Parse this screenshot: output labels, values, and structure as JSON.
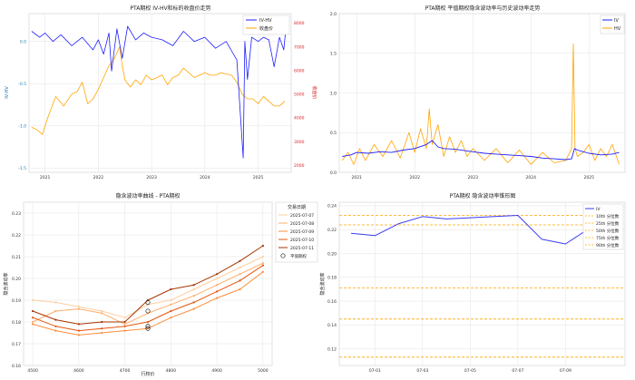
{
  "chart_data": [
    {
      "id": "c1",
      "type": "line",
      "title": "PTA期权 IV-HV和标的收盘价走势",
      "ylabel": "IV-HV",
      "y2label": "收盘价",
      "ylim": [
        -1.55,
        0.33
      ],
      "y2lim": [
        1700,
        8400
      ],
      "xlim": [
        2020.7,
        2025.62
      ],
      "yticks": [
        -1.5,
        -1.0,
        -0.5,
        0.0
      ],
      "yticklabels": [
        "-1.5",
        "-1.0",
        "-0.5",
        "0.0"
      ],
      "y2ticks": [
        2000,
        3000,
        4000,
        5000,
        6000,
        7000,
        8000
      ],
      "y2ticklabels": [
        "2000",
        "3000",
        "4000",
        "5000",
        "6000",
        "7000",
        "8000"
      ],
      "xticks": [
        2021,
        2022,
        2023,
        2024,
        2025
      ],
      "xticklabels": [
        "2021",
        "2022",
        "2023",
        "2024",
        "2025"
      ],
      "legend": [
        "IV-HV",
        "收盘价"
      ],
      "legend_position": "top-right",
      "colors": {
        "iv_hv": "#1f1fff",
        "close": "#ffa500",
        "axis_left": "#1f77b4",
        "axis_right": "#d62728"
      },
      "series": [
        {
          "name": "IV-HV",
          "axis": "left",
          "x": [
            2020.75,
            2020.9,
            2021.0,
            2021.15,
            2021.3,
            2021.5,
            2021.7,
            2021.9,
            2022.0,
            2022.1,
            2022.2,
            2022.25,
            2022.35,
            2022.45,
            2022.55,
            2022.7,
            2022.85,
            2023.0,
            2023.2,
            2023.4,
            2023.6,
            2023.8,
            2024.0,
            2024.2,
            2024.4,
            2024.6,
            2024.72,
            2024.75,
            2024.8,
            2024.88,
            2025.0,
            2025.1,
            2025.2,
            2025.3,
            2025.4,
            2025.48,
            2025.52
          ],
          "y": [
            0.12,
            0.05,
            0.1,
            0.0,
            0.08,
            -0.05,
            0.05,
            -0.1,
            0.02,
            -0.15,
            0.1,
            -0.35,
            0.15,
            -0.2,
            0.18,
            0.02,
            0.1,
            0.05,
            0.02,
            -0.05,
            0.12,
            0.0,
            0.05,
            -0.08,
            0.0,
            -0.22,
            -1.38,
            0.0,
            -0.45,
            0.05,
            0.0,
            0.05,
            0.02,
            -0.3,
            0.05,
            -0.1,
            0.15
          ]
        },
        {
          "name": "收盘价",
          "axis": "right",
          "x": [
            2020.75,
            2020.85,
            2020.95,
            2021.05,
            2021.2,
            2021.35,
            2021.5,
            2021.6,
            2021.7,
            2021.8,
            2021.9,
            2022.0,
            2022.1,
            2022.2,
            2022.3,
            2022.4,
            2022.45,
            2022.5,
            2022.6,
            2022.7,
            2022.8,
            2022.9,
            2023.0,
            2023.1,
            2023.2,
            2023.3,
            2023.4,
            2023.5,
            2023.6,
            2023.7,
            2023.8,
            2023.9,
            2024.0,
            2024.1,
            2024.2,
            2024.3,
            2024.4,
            2024.5,
            2024.6,
            2024.7,
            2024.8,
            2024.9,
            2025.0,
            2025.1,
            2025.2,
            2025.3,
            2025.4,
            2025.5
          ],
          "y": [
            3600,
            3500,
            3300,
            4000,
            4900,
            4500,
            5000,
            5100,
            5500,
            4600,
            4800,
            5200,
            5700,
            6200,
            6500,
            7000,
            6200,
            5600,
            5300,
            5600,
            5400,
            5800,
            5600,
            5700,
            5800,
            5400,
            5700,
            5800,
            6100,
            5900,
            5700,
            5800,
            5900,
            5800,
            5800,
            5900,
            5850,
            5800,
            5500,
            5000,
            4800,
            4800,
            4600,
            4900,
            4700,
            4500,
            4500,
            4700
          ]
        }
      ]
    },
    {
      "id": "c2",
      "type": "line",
      "title": "PTA期权 平值期权隐含波动率与历史波动率走势",
      "ylim": [
        0.0,
        2.0
      ],
      "xlim": [
        2020.7,
        2025.62
      ],
      "yticks": [
        0.0,
        0.5,
        1.0,
        1.5,
        2.0
      ],
      "yticklabels": [
        "0.0",
        "0.5",
        "1.0",
        "1.5",
        "2.0"
      ],
      "xticks": [
        2021,
        2022,
        2023,
        2024,
        2025
      ],
      "xticklabels": [
        "2021",
        "2022",
        "2023",
        "2024",
        "2025"
      ],
      "legend": [
        "IV",
        "HV"
      ],
      "legend_position": "top-right",
      "colors": {
        "iv": "#1f1fff",
        "hv": "#ffa500"
      },
      "series": [
        {
          "name": "IV",
          "x": [
            2020.75,
            2020.9,
            2021.0,
            2021.2,
            2021.4,
            2021.6,
            2021.8,
            2022.0,
            2022.2,
            2022.3,
            2022.4,
            2022.5,
            2022.7,
            2022.9,
            2023.0,
            2023.2,
            2023.4,
            2023.6,
            2023.8,
            2024.0,
            2024.2,
            2024.4,
            2024.6,
            2024.7,
            2024.75,
            2024.8,
            2024.9,
            2025.0,
            2025.2,
            2025.4,
            2025.52
          ],
          "y": [
            0.2,
            0.22,
            0.25,
            0.24,
            0.26,
            0.25,
            0.28,
            0.3,
            0.35,
            0.4,
            0.32,
            0.3,
            0.29,
            0.27,
            0.26,
            0.24,
            0.23,
            0.22,
            0.21,
            0.2,
            0.18,
            0.17,
            0.16,
            0.17,
            0.3,
            0.28,
            0.26,
            0.24,
            0.22,
            0.23,
            0.25
          ]
        },
        {
          "name": "HV",
          "x": [
            2020.75,
            2020.85,
            2020.95,
            2021.05,
            2021.15,
            2021.3,
            2021.45,
            2021.6,
            2021.75,
            2021.9,
            2022.0,
            2022.1,
            2022.2,
            2022.25,
            2022.3,
            2022.4,
            2022.5,
            2022.6,
            2022.7,
            2022.8,
            2022.9,
            2023.0,
            2023.2,
            2023.4,
            2023.6,
            2023.8,
            2024.0,
            2024.2,
            2024.4,
            2024.6,
            2024.7,
            2024.73,
            2024.76,
            2024.8,
            2024.9,
            2025.0,
            2025.1,
            2025.2,
            2025.3,
            2025.4,
            2025.52
          ],
          "y": [
            0.15,
            0.25,
            0.1,
            0.3,
            0.15,
            0.35,
            0.2,
            0.4,
            0.18,
            0.5,
            0.25,
            0.55,
            0.3,
            0.8,
            0.35,
            0.6,
            0.2,
            0.45,
            0.25,
            0.4,
            0.2,
            0.3,
            0.15,
            0.3,
            0.12,
            0.28,
            0.1,
            0.25,
            0.12,
            0.15,
            0.3,
            1.62,
            0.3,
            0.2,
            0.25,
            0.35,
            0.15,
            0.3,
            0.2,
            0.35,
            0.1
          ]
        }
      ]
    },
    {
      "id": "c3",
      "type": "line",
      "title": "隐含波动率曲线 - PTA期权",
      "xlabel": "行权价",
      "ylabel": "隐含波动率",
      "ylim": [
        0.16,
        0.235
      ],
      "xlim": [
        4480,
        5020
      ],
      "yticks": [
        0.16,
        0.17,
        0.18,
        0.19,
        0.2,
        0.21,
        0.22,
        0.23
      ],
      "yticklabels": [
        "0.16",
        "0.17",
        "0.18",
        "0.19",
        "0.20",
        "0.21",
        "0.22",
        "0.23"
      ],
      "xticks": [
        4500,
        4600,
        4700,
        4800,
        4900,
        5000
      ],
      "xticklabels": [
        "4500",
        "4600",
        "4700",
        "4800",
        "4900",
        "5000"
      ],
      "legend_title": "交易日期",
      "legend": [
        "2025-07-07",
        "2025-07-08",
        "2025-07-09",
        "2025-07-10",
        "2025-07-11",
        "平值期权"
      ],
      "legend_position": "top-right",
      "categories": [
        4500,
        4550,
        4600,
        4650,
        4700,
        4750,
        4800,
        4850,
        4900,
        4950,
        5000
      ],
      "series": [
        {
          "name": "2025-07-07",
          "color": "#fdd0a2",
          "values": [
            0.19,
            0.189,
            0.187,
            0.185,
            0.182,
            0.188,
            0.19,
            0.195,
            0.2,
            0.205,
            0.21
          ]
        },
        {
          "name": "2025-07-08",
          "color": "#fdae6b",
          "values": [
            0.18,
            0.185,
            0.186,
            0.184,
            0.179,
            0.184,
            0.188,
            0.192,
            0.197,
            0.202,
            0.207
          ]
        },
        {
          "name": "2025-07-09",
          "color": "#fd8d3c",
          "values": [
            0.179,
            0.176,
            0.174,
            0.175,
            0.176,
            0.177,
            0.182,
            0.186,
            0.191,
            0.195,
            0.203
          ]
        },
        {
          "name": "2025-07-10",
          "color": "#e6550d",
          "values": [
            0.182,
            0.178,
            0.176,
            0.177,
            0.178,
            0.18,
            0.185,
            0.189,
            0.194,
            0.199,
            0.206
          ]
        },
        {
          "name": "2025-07-11",
          "color": "#a63603",
          "values": [
            0.185,
            0.181,
            0.179,
            0.18,
            0.18,
            0.19,
            0.195,
            0.197,
            0.202,
            0.208,
            0.215
          ]
        }
      ],
      "atm_markers": [
        [
          4750,
          0.189
        ],
        [
          4750,
          0.185
        ],
        [
          4750,
          0.178
        ],
        [
          4750,
          0.177
        ]
      ]
    },
    {
      "id": "c4",
      "type": "line",
      "title": "PTA期权 隐含波动率锥形图",
      "ylabel": "隐含波动率",
      "ylim": [
        0.106,
        0.243
      ],
      "xlim": [
        -0.5,
        11.5
      ],
      "yticks": [
        0.12,
        0.14,
        0.16,
        0.18,
        0.2,
        0.22,
        0.24
      ],
      "yticklabels": [
        "0.12",
        "0.14",
        "0.16",
        "0.18",
        "0.20",
        "0.22",
        "0.24"
      ],
      "xticks": [
        1,
        3,
        5,
        7,
        9
      ],
      "xticklabels": [
        "07-01",
        "07-03",
        "07-05",
        "07-07",
        "07-09"
      ],
      "legend": [
        "IV",
        "10th 分位数",
        "25th 分位数",
        "50th 分位数",
        "75th 分位数",
        "90th 分位数"
      ],
      "legend_position": "top-right",
      "colors": {
        "iv": "#3b3bf5",
        "quantile": "#ffa500"
      },
      "series": [
        {
          "name": "IV",
          "x": [
            0,
            1,
            2,
            3,
            4,
            5,
            6,
            7,
            8,
            9,
            10
          ],
          "y": [
            0.217,
            0.215,
            0.225,
            0.231,
            0.229,
            0.23,
            0.231,
            0.232,
            0.212,
            0.208,
            0.221
          ]
        }
      ],
      "quantile_lines": [
        0.113,
        0.145,
        0.171,
        0.224,
        0.232
      ]
    }
  ]
}
